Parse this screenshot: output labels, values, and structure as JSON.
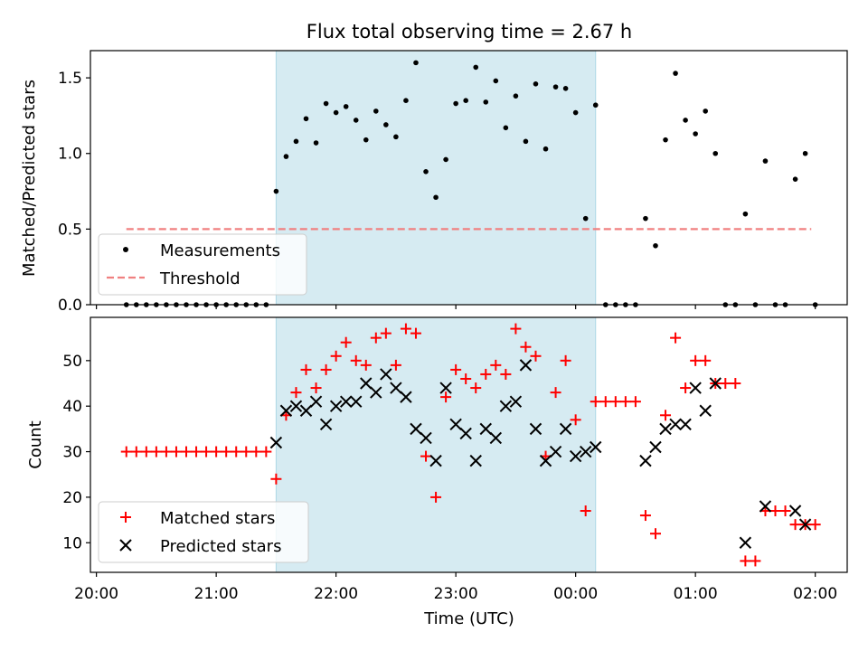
{
  "chart_data": [
    {
      "type": "scatter",
      "title": "Flux total observing time = 2.67 h",
      "ylabel": "Matched/Predicted stars",
      "xlabel": "",
      "xlim": [
        "19:57",
        "02:16"
      ],
      "ylim": [
        0,
        1.68
      ],
      "yticks": [
        "0.0",
        "0.5",
        "1.0",
        "1.5"
      ],
      "shaded_interval": [
        "21:30",
        "00:10"
      ],
      "legend": {
        "placement": "lower-left",
        "entries": [
          "Measurements",
          "Threshold"
        ]
      },
      "threshold": {
        "name": "Threshold",
        "y": 0.5,
        "x_start": "20:15",
        "x_end": "01:58",
        "color": "#f08080"
      },
      "series": [
        {
          "name": "Measurements",
          "color": "#000000",
          "points": [
            [
              "20:15",
              0.0
            ],
            [
              "20:20",
              0.0
            ],
            [
              "20:25",
              0.0
            ],
            [
              "20:30",
              0.0
            ],
            [
              "20:35",
              0.0
            ],
            [
              "20:40",
              0.0
            ],
            [
              "20:45",
              0.0
            ],
            [
              "20:50",
              0.0
            ],
            [
              "20:55",
              0.0
            ],
            [
              "21:00",
              0.0
            ],
            [
              "21:05",
              0.0
            ],
            [
              "21:10",
              0.0
            ],
            [
              "21:15",
              0.0
            ],
            [
              "21:20",
              0.0
            ],
            [
              "21:25",
              0.0
            ],
            [
              "21:30",
              0.75
            ],
            [
              "21:35",
              0.98
            ],
            [
              "21:40",
              1.08
            ],
            [
              "21:45",
              1.23
            ],
            [
              "21:50",
              1.07
            ],
            [
              "21:55",
              1.33
            ],
            [
              "22:00",
              1.27
            ],
            [
              "22:05",
              1.31
            ],
            [
              "22:10",
              1.22
            ],
            [
              "22:15",
              1.09
            ],
            [
              "22:20",
              1.28
            ],
            [
              "22:25",
              1.19
            ],
            [
              "22:30",
              1.11
            ],
            [
              "22:35",
              1.35
            ],
            [
              "22:40",
              1.6
            ],
            [
              "22:45",
              0.88
            ],
            [
              "22:50",
              0.71
            ],
            [
              "22:55",
              0.96
            ],
            [
              "23:00",
              1.33
            ],
            [
              "23:05",
              1.35
            ],
            [
              "23:10",
              1.57
            ],
            [
              "23:15",
              1.34
            ],
            [
              "23:20",
              1.48
            ],
            [
              "23:25",
              1.17
            ],
            [
              "23:30",
              1.38
            ],
            [
              "23:35",
              1.08
            ],
            [
              "23:40",
              1.46
            ],
            [
              "23:45",
              1.03
            ],
            [
              "23:50",
              1.44
            ],
            [
              "23:55",
              1.43
            ],
            [
              "00:00",
              1.27
            ],
            [
              "00:05",
              0.57
            ],
            [
              "00:10",
              1.32
            ],
            [
              "00:15",
              0.0
            ],
            [
              "00:20",
              0.0
            ],
            [
              "00:25",
              0.0
            ],
            [
              "00:30",
              0.0
            ],
            [
              "00:35",
              0.57
            ],
            [
              "00:40",
              0.39
            ],
            [
              "00:45",
              1.09
            ],
            [
              "00:50",
              1.53
            ],
            [
              "00:55",
              1.22
            ],
            [
              "01:00",
              1.13
            ],
            [
              "01:05",
              1.28
            ],
            [
              "01:10",
              1.0
            ],
            [
              "01:15",
              0.0
            ],
            [
              "01:20",
              0.0
            ],
            [
              "01:25",
              0.6
            ],
            [
              "01:30",
              0.0
            ],
            [
              "01:35",
              0.95
            ],
            [
              "01:40",
              0.0
            ],
            [
              "01:45",
              0.0
            ],
            [
              "01:50",
              0.83
            ],
            [
              "01:55",
              1.0
            ],
            [
              "02:00",
              0.0
            ]
          ]
        }
      ]
    },
    {
      "type": "scatter",
      "title": "",
      "ylabel": "Count",
      "xlabel": "Time (UTC)",
      "xlim": [
        "19:57",
        "02:16"
      ],
      "ylim": [
        3.5,
        59.5
      ],
      "yticks": [
        "10",
        "20",
        "30",
        "40",
        "50"
      ],
      "xticks": [
        "20:00",
        "21:00",
        "22:00",
        "23:00",
        "00:00",
        "01:00",
        "02:00"
      ],
      "shaded_interval": [
        "21:30",
        "00:10"
      ],
      "legend": {
        "placement": "lower-left",
        "entries": [
          "Matched stars",
          "Predicted stars"
        ]
      },
      "series": [
        {
          "name": "Matched stars",
          "marker": "plus",
          "color": "#ff0000",
          "points": [
            [
              "20:15",
              30
            ],
            [
              "20:20",
              30
            ],
            [
              "20:25",
              30
            ],
            [
              "20:30",
              30
            ],
            [
              "20:35",
              30
            ],
            [
              "20:40",
              30
            ],
            [
              "20:45",
              30
            ],
            [
              "20:50",
              30
            ],
            [
              "20:55",
              30
            ],
            [
              "21:00",
              30
            ],
            [
              "21:05",
              30
            ],
            [
              "21:10",
              30
            ],
            [
              "21:15",
              30
            ],
            [
              "21:20",
              30
            ],
            [
              "21:25",
              30
            ],
            [
              "21:30",
              24
            ],
            [
              "21:35",
              38
            ],
            [
              "21:40",
              43
            ],
            [
              "21:45",
              48
            ],
            [
              "21:50",
              44
            ],
            [
              "21:55",
              48
            ],
            [
              "22:00",
              51
            ],
            [
              "22:05",
              54
            ],
            [
              "22:10",
              50
            ],
            [
              "22:15",
              49
            ],
            [
              "22:20",
              55
            ],
            [
              "22:25",
              56
            ],
            [
              "22:30",
              49
            ],
            [
              "22:35",
              57
            ],
            [
              "22:40",
              56
            ],
            [
              "22:45",
              29
            ],
            [
              "22:50",
              20
            ],
            [
              "22:55",
              42
            ],
            [
              "23:00",
              48
            ],
            [
              "23:05",
              46
            ],
            [
              "23:10",
              44
            ],
            [
              "23:15",
              47
            ],
            [
              "23:20",
              49
            ],
            [
              "23:25",
              47
            ],
            [
              "23:30",
              57
            ],
            [
              "23:35",
              53
            ],
            [
              "23:40",
              51
            ],
            [
              "23:45",
              29
            ],
            [
              "23:50",
              43
            ],
            [
              "23:55",
              50
            ],
            [
              "00:00",
              37
            ],
            [
              "00:05",
              17
            ],
            [
              "00:10",
              41
            ],
            [
              "00:15",
              41
            ],
            [
              "00:20",
              41
            ],
            [
              "00:25",
              41
            ],
            [
              "00:30",
              41
            ],
            [
              "00:35",
              16
            ],
            [
              "00:40",
              12
            ],
            [
              "00:45",
              38
            ],
            [
              "00:50",
              55
            ],
            [
              "00:55",
              44
            ],
            [
              "01:00",
              50
            ],
            [
              "01:05",
              50
            ],
            [
              "01:10",
              45
            ],
            [
              "01:15",
              45
            ],
            [
              "01:20",
              45
            ],
            [
              "01:25",
              6
            ],
            [
              "01:30",
              6
            ],
            [
              "01:35",
              17
            ],
            [
              "01:40",
              17
            ],
            [
              "01:45",
              17
            ],
            [
              "01:50",
              14
            ],
            [
              "01:55",
              14
            ],
            [
              "02:00",
              14
            ]
          ]
        },
        {
          "name": "Predicted stars",
          "marker": "x",
          "color": "#000000",
          "points": [
            [
              "21:30",
              32
            ],
            [
              "21:35",
              39
            ],
            [
              "21:40",
              40
            ],
            [
              "21:45",
              39
            ],
            [
              "21:50",
              41
            ],
            [
              "21:55",
              36
            ],
            [
              "22:00",
              40
            ],
            [
              "22:05",
              41
            ],
            [
              "22:10",
              41
            ],
            [
              "22:15",
              45
            ],
            [
              "22:20",
              43
            ],
            [
              "22:25",
              47
            ],
            [
              "22:30",
              44
            ],
            [
              "22:35",
              42
            ],
            [
              "22:40",
              35
            ],
            [
              "22:45",
              33
            ],
            [
              "22:50",
              28
            ],
            [
              "22:55",
              44
            ],
            [
              "23:00",
              36
            ],
            [
              "23:05",
              34
            ],
            [
              "23:10",
              28
            ],
            [
              "23:15",
              35
            ],
            [
              "23:20",
              33
            ],
            [
              "23:25",
              40
            ],
            [
              "23:30",
              41
            ],
            [
              "23:35",
              49
            ],
            [
              "23:40",
              35
            ],
            [
              "23:45",
              28
            ],
            [
              "23:50",
              30
            ],
            [
              "23:55",
              35
            ],
            [
              "00:00",
              29
            ],
            [
              "00:05",
              30
            ],
            [
              "00:10",
              31
            ],
            [
              "00:35",
              28
            ],
            [
              "00:40",
              31
            ],
            [
              "00:45",
              35
            ],
            [
              "00:50",
              36
            ],
            [
              "00:55",
              36
            ],
            [
              "01:00",
              44
            ],
            [
              "01:05",
              39
            ],
            [
              "01:10",
              45
            ],
            [
              "01:25",
              10
            ],
            [
              "01:35",
              18
            ],
            [
              "01:50",
              17
            ],
            [
              "01:55",
              14
            ]
          ]
        }
      ]
    }
  ]
}
